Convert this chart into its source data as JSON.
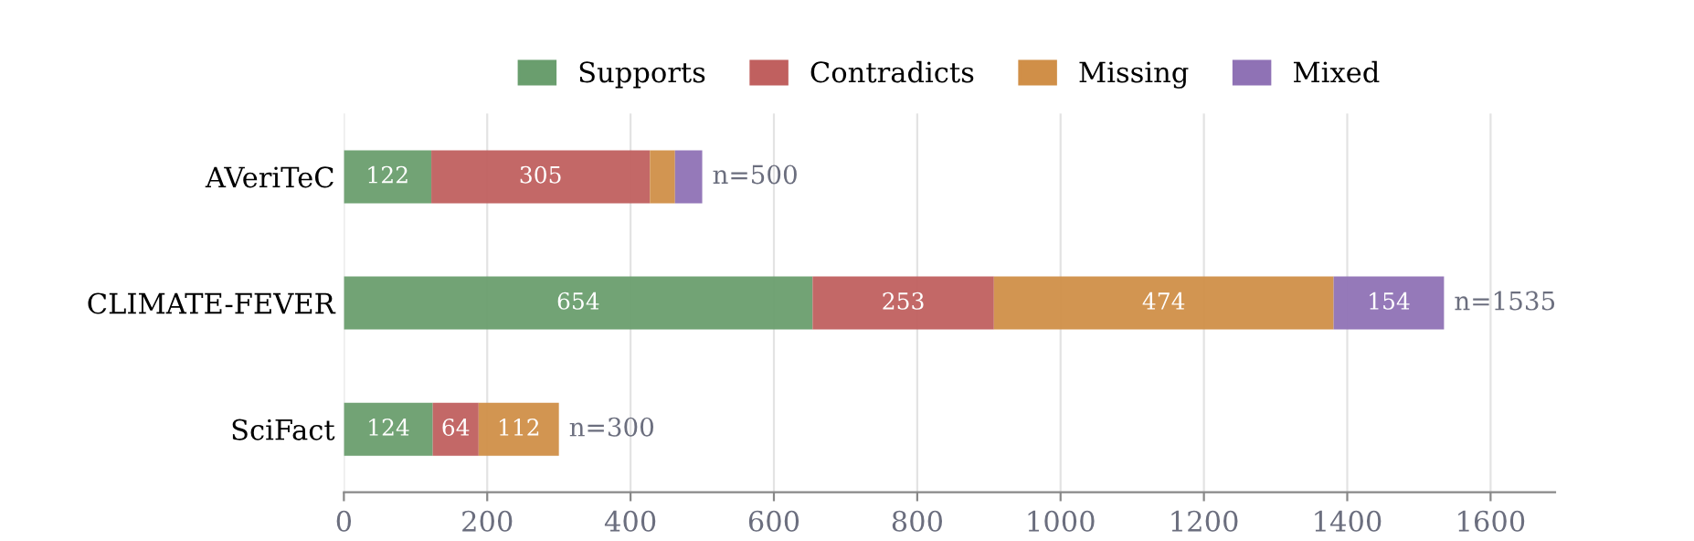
{
  "chart_data": {
    "type": "bar",
    "orientation": "horizontal",
    "stacked": true,
    "categories": [
      "AVeriTeC",
      "CLIMATE-FEVER",
      "SciFact"
    ],
    "series": [
      {
        "name": "Supports",
        "color": "#6a9e6e",
        "values": [
          122,
          654,
          124
        ],
        "value_labels": [
          "122",
          "654",
          "124"
        ]
      },
      {
        "name": "Contradicts",
        "color": "#c0605f",
        "values": [
          305,
          253,
          64
        ],
        "value_labels": [
          "305",
          "253",
          "64"
        ]
      },
      {
        "name": "Missing",
        "color": "#d08f48",
        "values": [
          35,
          474,
          112
        ],
        "value_labels": [
          null,
          "474",
          "112"
        ]
      },
      {
        "name": "Mixed",
        "color": "#8f72b5",
        "values": [
          38,
          154,
          0
        ],
        "value_labels": [
          null,
          "154",
          null
        ]
      }
    ],
    "totals": [
      "n=500",
      "n=1535",
      "n=300"
    ],
    "xlim": [
      0,
      1690
    ],
    "xticks": [
      0,
      200,
      400,
      600,
      800,
      1000,
      1200,
      1400,
      1600
    ],
    "grid": "x",
    "legend": "top"
  }
}
